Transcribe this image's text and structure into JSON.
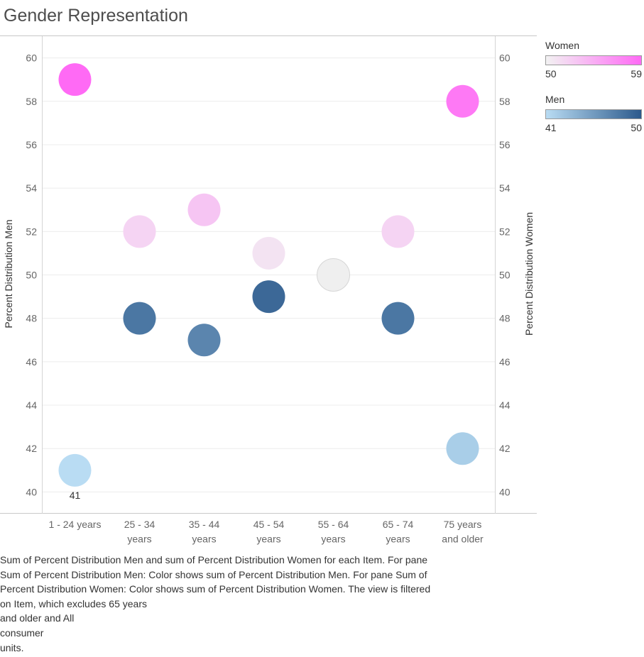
{
  "chart_title": "Gender Representation",
  "chart_data": {
    "type": "scatter",
    "title": "Gender Representation",
    "categories": [
      "1 - 24 years",
      "25 - 34 years",
      "35 - 44 years",
      "45 - 54 years",
      "55 - 64 years",
      "65 - 74 years",
      "75 years and older"
    ],
    "category_lines": [
      [
        "1 - 24 years"
      ],
      [
        "25 - 34",
        "years"
      ],
      [
        "35 - 44",
        "years"
      ],
      [
        "45 - 54",
        "years"
      ],
      [
        "55 - 64",
        "years"
      ],
      [
        "65 - 74",
        "years"
      ],
      [
        "75 years",
        "and older"
      ]
    ],
    "series": [
      {
        "name": "Men",
        "values": [
          41,
          48,
          47,
          49,
          50,
          48,
          42
        ],
        "axis": "left"
      },
      {
        "name": "Women",
        "values": [
          59,
          52,
          53,
          51,
          50,
          52,
          58
        ],
        "axis": "right"
      }
    ],
    "ylabel": "Percent Distribution Men",
    "y2label": "Percent Distribution Women",
    "ylim": [
      39,
      61
    ],
    "yticks": [
      40,
      42,
      44,
      46,
      48,
      50,
      52,
      54,
      56,
      58,
      60
    ],
    "data_labels": [
      {
        "series": "Men",
        "category": "1 - 24 years",
        "text": "41"
      }
    ],
    "grid": true,
    "legend_position": "top-right",
    "legends": [
      {
        "title": "Women",
        "min": "50",
        "max": "59",
        "color_low": "#f2f2f2",
        "color_high": "#ff6af5"
      },
      {
        "title": "Men",
        "min": "41",
        "max": "50",
        "color_low": "#b9dcf3",
        "color_high": "#2c5a8c"
      }
    ],
    "colors": {
      "overlap": "#efefef"
    }
  },
  "caption": "Sum of Percent Distribution Men and sum of Percent Distribution Women for each Item.  For pane\nSum of Percent Distribution Men:  Color shows sum of Percent Distribution Men.  For pane Sum of\nPercent Distribution Women:  Color shows sum of Percent Distribution Women. The view is filtered\non Item, which excludes 65 years\n and older and All\nconsumer\n units."
}
